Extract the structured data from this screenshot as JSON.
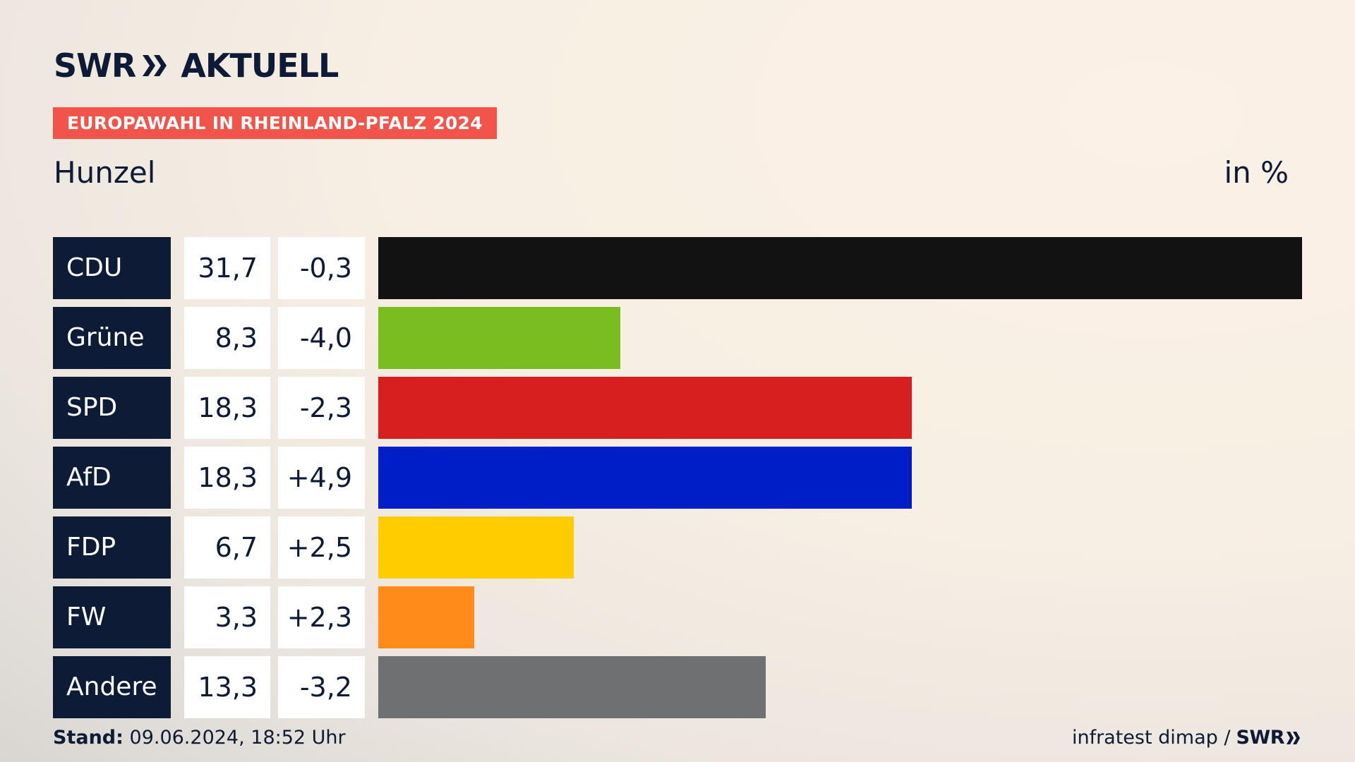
{
  "header": {
    "logo_left": "SWR",
    "logo_right": "AKTUELL",
    "badge": "EUROPAWAHL IN RHEINLAND-PFALZ 2024",
    "place": "Hunzel",
    "unit": "in %"
  },
  "footer": {
    "stand_label": "Stand:",
    "stand_value": "09.06.2024, 18:52 Uhr",
    "source": "infratest dimap /",
    "source_logo": "SWR"
  },
  "chart_data": {
    "type": "bar",
    "orientation": "horizontal",
    "categories": [
      "CDU",
      "Grüne",
      "SPD",
      "AfD",
      "FDP",
      "FW",
      "Andere"
    ],
    "values": [
      31.7,
      8.3,
      18.3,
      18.3,
      6.7,
      3.3,
      13.3
    ],
    "value_labels": [
      "31,7",
      "8,3",
      "18,3",
      "18,3",
      "6,7",
      "3,3",
      "13,3"
    ],
    "diff_labels": [
      "-0,3",
      "-4,0",
      "-2,3",
      "+4,9",
      "+2,5",
      "+2,3",
      "-3,2"
    ],
    "colors": [
      "#121212",
      "#7abd1f",
      "#d71f1f",
      "#001ec8",
      "#ffcc00",
      "#ff8c1a",
      "#6f7072"
    ],
    "xlim": [
      0,
      31.7
    ],
    "title": "",
    "xlabel": "",
    "ylabel": ""
  },
  "colors": {
    "accent": "#f2544a",
    "navy": "#0d1b36"
  }
}
